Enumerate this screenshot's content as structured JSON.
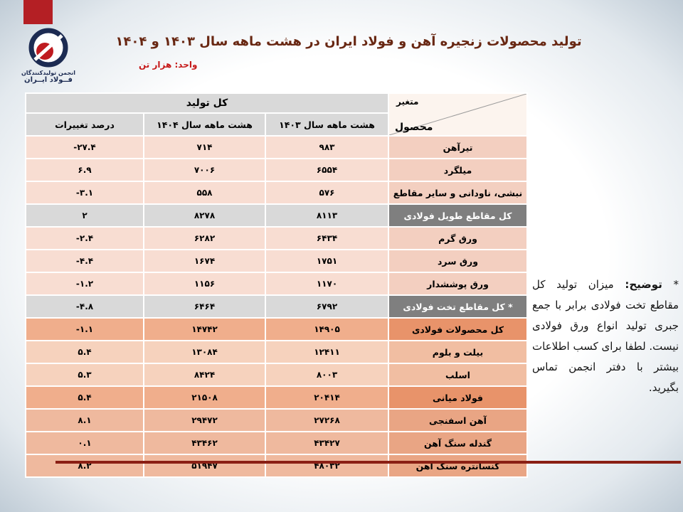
{
  "slide": {
    "title": "تولید محصولات زنجیره آهن و فولاد ایران در هشت ماهه سال ۱۴۰۳ و ۱۴۰۴",
    "unit_label": "واحد: هزار تن"
  },
  "logo": {
    "org_line1": "انجمن تولیدکنندگان",
    "org_line2": "فــولاد ایــران"
  },
  "palette": {
    "accent_red": "#b41f24",
    "title_maroon": "#682712",
    "divider_dark_red": "#8a1f14",
    "header_gray": "#d9d9d9",
    "total_row_gray": "#7f7f7f",
    "pink_row": "#f8ddd2",
    "orange_row": "#f0ae8c",
    "salmon_row": "#efb99e"
  },
  "table": {
    "corner": {
      "top_label": "متغیر",
      "bottom_label": "محصول"
    },
    "group_header": "کل تولید",
    "columns": [
      "هشت ماهه سال ۱۴۰۳",
      "هشت ماهه سال ۱۴۰۴",
      "درصد تغییرات"
    ],
    "rows": [
      {
        "product": "تیرآهن",
        "y1403": "۹۸۳",
        "y1404": "۷۱۴",
        "change": "-۲۷.۴",
        "style": "pink"
      },
      {
        "product": "میلگرد",
        "y1403": "۶۵۵۴",
        "y1404": "۷۰۰۶",
        "change": "۶.۹",
        "style": "pink"
      },
      {
        "product": "نبشی، ناودانی و سایر مقاطع",
        "y1403": "۵۷۶",
        "y1404": "۵۵۸",
        "change": "-۳.۱",
        "style": "pink"
      },
      {
        "product": "کل مقاطع طویل فولادی",
        "y1403": "۸۱۱۳",
        "y1404": "۸۲۷۸",
        "change": "۲",
        "style": "gray"
      },
      {
        "product": "ورق گرم",
        "y1403": "۶۴۳۴",
        "y1404": "۶۲۸۲",
        "change": "-۲.۴",
        "style": "pink"
      },
      {
        "product": "ورق سرد",
        "y1403": "۱۷۵۱",
        "y1404": "۱۶۷۴",
        "change": "-۴.۴",
        "style": "pink"
      },
      {
        "product": "ورق پوششدار",
        "y1403": "۱۱۷۰",
        "y1404": "۱۱۵۶",
        "change": "-۱.۲",
        "style": "pink"
      },
      {
        "product": "* کل مقاطع تخت فولادی",
        "y1403": "۶۷۹۲",
        "y1404": "۶۴۶۴",
        "change": "-۴.۸",
        "style": "gray"
      },
      {
        "product": "کل محصولات فولادی",
        "y1403": "۱۴۹۰۵",
        "y1404": "۱۴۷۴۲",
        "change": "-۱.۱",
        "style": "orange"
      },
      {
        "product": "بیلت و بلوم",
        "y1403": "۱۲۴۱۱",
        "y1404": "۱۳۰۸۴",
        "change": "۵.۴",
        "style": "lightorange"
      },
      {
        "product": "اسلب",
        "y1403": "۸۰۰۳",
        "y1404": "۸۴۲۴",
        "change": "۵.۳",
        "style": "lightorange"
      },
      {
        "product": "فولاد میانی",
        "y1403": "۲۰۴۱۴",
        "y1404": "۲۱۵۰۸",
        "change": "۵.۴",
        "style": "orange"
      },
      {
        "product": "آهن اسفنجی",
        "y1403": "۲۷۲۶۸",
        "y1404": "۲۹۴۷۲",
        "change": "۸.۱",
        "style": "salmon"
      },
      {
        "product": "گندله سنگ آهن",
        "y1403": "۴۳۴۲۷",
        "y1404": "۴۳۴۶۲",
        "change": "۰.۱",
        "style": "salmon"
      },
      {
        "product": "کنسانتره سنگ آهن",
        "y1403": "۴۸۰۳۲",
        "y1404": "۵۱۹۴۷",
        "change": "۸.۲",
        "style": "salmon"
      }
    ]
  },
  "note": {
    "star": "*",
    "label": "توضیح:",
    "text": "میزان تولید کل مقاطع تخت فولادی برابر با جمع جبری تولید انواع ورق فولادی نیست. لطفا برای کسب اطلاعات بیشتر با دفتر انجمن تماس بگیرید."
  }
}
